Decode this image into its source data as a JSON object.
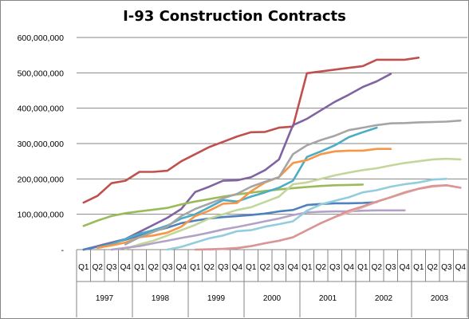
{
  "chart_data": {
    "type": "line",
    "title": "I-93 Construction Contracts",
    "xlabel": "",
    "ylabel": "",
    "ylim": [
      0,
      600000000
    ],
    "grid": true,
    "legend": "none",
    "y_ticks": [
      "-",
      "100,000,000",
      "200,000,000",
      "300,000,000",
      "400,000,000",
      "500,000,000",
      "600,000,000"
    ],
    "quarters": [
      "Q1",
      "Q2",
      "Q3",
      "Q4",
      "Q1",
      "Q2",
      "Q3",
      "Q4",
      "Q1",
      "Q2",
      "Q3",
      "Q4",
      "Q1",
      "Q2",
      "Q3",
      "Q4",
      "Q1",
      "Q2",
      "Q3",
      "Q4",
      "Q1",
      "Q2",
      "Q3",
      "Q4",
      "Q1",
      "Q2",
      "Q3",
      "Q4"
    ],
    "years": [
      "1997",
      "1998",
      "1999",
      "2000",
      "2001",
      "2002",
      "2003"
    ],
    "series": [
      {
        "color": "#C0504D",
        "x": [
          0,
          1,
          2,
          3,
          4,
          5,
          6,
          7,
          8,
          9,
          10,
          11,
          12,
          13,
          14,
          15,
          16,
          17,
          18,
          19,
          20,
          21,
          22,
          23,
          24,
          25,
          26
        ],
        "values": [
          133000000,
          152000000,
          188000000,
          195000000,
          220000000,
          220000000,
          223000000,
          250000000,
          270000000,
          290000000,
          305000000,
          320000000,
          332000000,
          333000000,
          345000000,
          348000000,
          499000000,
          504000000,
          509000000,
          514000000,
          519000000,
          537000000,
          537000000,
          537000000,
          543000000,
          null,
          null
        ]
      },
      {
        "color": "#8064A2",
        "x": [
          0,
          1,
          2,
          3,
          4,
          5,
          6,
          7,
          8,
          9,
          10,
          11,
          12,
          13,
          14,
          15,
          16,
          17,
          18,
          19,
          20,
          21,
          22,
          23
        ],
        "values": [
          0,
          10000000,
          20000000,
          30000000,
          50000000,
          70000000,
          90000000,
          115000000,
          163000000,
          178000000,
          195000000,
          196000000,
          205000000,
          225000000,
          255000000,
          352000000,
          370000000,
          394000000,
          418000000,
          438000000,
          460000000,
          476000000,
          497000000,
          null
        ]
      },
      {
        "color": "#9BBB59",
        "x": [
          0,
          1,
          2,
          3,
          4,
          5,
          6,
          7,
          8,
          9,
          10,
          11,
          12,
          13,
          14,
          15,
          16,
          17,
          18,
          19,
          20
        ],
        "values": [
          67000000,
          82000000,
          95000000,
          103000000,
          108000000,
          113000000,
          118000000,
          128000000,
          136000000,
          143000000,
          150000000,
          156000000,
          161000000,
          166000000,
          170000000,
          174000000,
          177000000,
          180000000,
          182000000,
          183000000,
          184000000
        ]
      },
      {
        "color": "#4F81BD",
        "x": [
          0,
          1,
          2,
          3,
          4,
          5,
          6,
          7,
          8,
          9,
          10,
          11,
          12,
          13,
          14,
          15,
          16,
          17,
          18,
          19,
          20,
          21
        ],
        "values": [
          0,
          8000000,
          18000000,
          28000000,
          40000000,
          52000000,
          62000000,
          75000000,
          82000000,
          88000000,
          92000000,
          95000000,
          98000000,
          102000000,
          108000000,
          112000000,
          126000000,
          129000000,
          131000000,
          131000000,
          132000000,
          134000000
        ]
      },
      {
        "color": "#4BACC6",
        "x": [
          1,
          2,
          3,
          4,
          5,
          6,
          7,
          8,
          9,
          10,
          11,
          12,
          13,
          14,
          15,
          16,
          17,
          18,
          19,
          20,
          21,
          22,
          23
        ],
        "values": [
          5000000,
          15000000,
          30000000,
          45000000,
          55000000,
          68000000,
          88000000,
          100000000,
          120000000,
          140000000,
          136000000,
          150000000,
          162000000,
          175000000,
          195000000,
          262000000,
          278000000,
          295000000,
          318000000,
          332000000,
          345000000,
          null,
          null
        ]
      },
      {
        "color": "#F79646",
        "x": [
          1,
          2,
          3,
          4,
          5,
          6,
          7,
          8,
          9,
          10,
          11,
          12,
          13,
          14,
          15,
          16,
          17,
          18,
          19,
          20,
          21,
          22,
          23
        ],
        "values": [
          5000000,
          12000000,
          20000000,
          35000000,
          40000000,
          48000000,
          65000000,
          95000000,
          110000000,
          130000000,
          132000000,
          165000000,
          190000000,
          205000000,
          245000000,
          253000000,
          270000000,
          278000000,
          280000000,
          280000000,
          285000000,
          285000000,
          null
        ]
      },
      {
        "color": "#A5A5A5",
        "x": [
          3,
          4,
          5,
          6,
          7,
          8,
          9,
          10,
          11,
          12,
          13,
          14,
          15,
          16,
          17,
          18,
          19,
          20,
          21,
          22,
          23,
          24,
          25,
          26,
          27
        ],
        "values": [
          15000000,
          35000000,
          50000000,
          65000000,
          95000000,
          115000000,
          130000000,
          145000000,
          158000000,
          178000000,
          192000000,
          205000000,
          270000000,
          295000000,
          310000000,
          322000000,
          338000000,
          345000000,
          352000000,
          357000000,
          358000000,
          360000000,
          361000000,
          362000000,
          365000000
        ]
      },
      {
        "color": "#C3D69B",
        "x": [
          3,
          4,
          5,
          6,
          7,
          8,
          9,
          10,
          11,
          12,
          13,
          14,
          15,
          16,
          17,
          18,
          19,
          20,
          21,
          22,
          23,
          24,
          25,
          26,
          27
        ],
        "values": [
          2000000,
          15000000,
          25000000,
          40000000,
          55000000,
          70000000,
          88000000,
          100000000,
          112000000,
          120000000,
          135000000,
          150000000,
          185000000,
          190000000,
          200000000,
          210000000,
          218000000,
          225000000,
          230000000,
          238000000,
          245000000,
          250000000,
          255000000,
          257000000,
          255000000
        ]
      },
      {
        "color": "#B3A2C7",
        "x": [
          2,
          3,
          4,
          5,
          6,
          7,
          8,
          9,
          10,
          11,
          12,
          13,
          14,
          15,
          16,
          17,
          18,
          19,
          20,
          21,
          22,
          23
        ],
        "values": [
          0,
          5000000,
          10000000,
          18000000,
          25000000,
          33000000,
          40000000,
          48000000,
          57000000,
          64000000,
          72000000,
          80000000,
          88000000,
          98000000,
          105000000,
          107000000,
          108000000,
          108000000,
          110000000,
          111000000,
          111000000,
          111000000
        ]
      },
      {
        "color": "#93CDDD",
        "x": [
          6,
          7,
          8,
          9,
          10,
          11,
          12,
          13,
          14,
          15,
          16,
          17,
          18,
          19,
          20,
          21,
          22,
          23,
          24,
          25,
          26,
          27
        ],
        "values": [
          0,
          8000000,
          20000000,
          32000000,
          40000000,
          52000000,
          55000000,
          65000000,
          72000000,
          80000000,
          110000000,
          128000000,
          138000000,
          148000000,
          162000000,
          168000000,
          178000000,
          185000000,
          190000000,
          198000000,
          200000000,
          null
        ]
      },
      {
        "color": "#E6B9B8",
        "x": [
          9,
          10,
          11,
          12,
          13,
          14,
          15,
          16,
          17,
          18,
          19,
          20,
          21,
          22,
          23,
          24,
          25,
          26,
          27
        ],
        "values": [
          0,
          2000000,
          5000000,
          10000000,
          18000000,
          25000000,
          35000000,
          55000000,
          75000000,
          92000000,
          105000000,
          120000000,
          135000000,
          148000000,
          160000000,
          172000000,
          178000000,
          182000000,
          175000000
        ]
      },
      {
        "color": "#D99694",
        "x": [
          8,
          9,
          10,
          11,
          12,
          13,
          14,
          15,
          16,
          17,
          18,
          19,
          20,
          21,
          22,
          23,
          24,
          25,
          26,
          27
        ],
        "values": [
          0,
          1000000,
          2000000,
          4000000,
          10000000,
          18000000,
          25000000,
          35000000,
          55000000,
          75000000,
          92000000,
          110000000,
          122000000,
          136000000,
          148000000,
          162000000,
          172000000,
          180000000,
          182000000,
          175000000
        ]
      }
    ]
  }
}
